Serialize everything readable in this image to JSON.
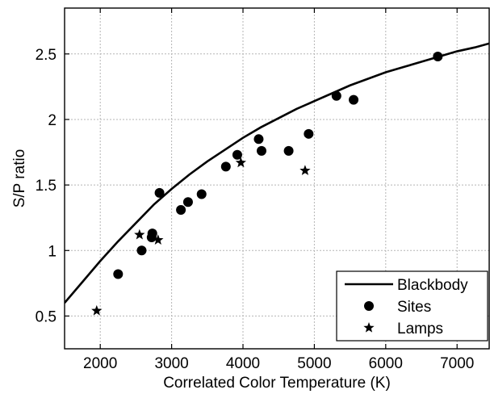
{
  "chart_data": {
    "type": "scatter",
    "xlabel": "Correlated Color Temperature (K)",
    "ylabel": "S/P ratio",
    "xlim": [
      1500,
      7450
    ],
    "ylim": [
      0.25,
      2.85
    ],
    "xticks": [
      2000,
      3000,
      4000,
      5000,
      6000,
      7000
    ],
    "yticks": [
      0.5,
      1,
      1.5,
      2,
      2.5
    ],
    "ytick_labels": [
      "0.5",
      "1",
      "1.5",
      "2",
      "2.5"
    ],
    "grid": true,
    "legend_position": "bottom-right",
    "series": [
      {
        "name": "Blackbody",
        "kind": "line",
        "color": "#000000",
        "x": [
          1500,
          1750,
          2000,
          2250,
          2500,
          2750,
          3000,
          3250,
          3500,
          3750,
          4000,
          4250,
          4500,
          4750,
          5000,
          5250,
          5500,
          5750,
          6000,
          6250,
          6500,
          6750,
          7000,
          7250,
          7450
        ],
        "y": [
          0.6,
          0.76,
          0.92,
          1.07,
          1.21,
          1.35,
          1.47,
          1.58,
          1.68,
          1.77,
          1.86,
          1.94,
          2.01,
          2.08,
          2.14,
          2.2,
          2.26,
          2.31,
          2.36,
          2.4,
          2.44,
          2.48,
          2.52,
          2.55,
          2.58
        ]
      },
      {
        "name": "Sites",
        "kind": "marker-circle",
        "color": "#000000",
        "x": [
          2250,
          2580,
          2720,
          2730,
          2830,
          3130,
          3230,
          3420,
          3760,
          3920,
          4220,
          4260,
          4640,
          4920,
          5310,
          5550,
          6730
        ],
        "y": [
          0.82,
          1.0,
          1.1,
          1.13,
          1.44,
          1.31,
          1.37,
          1.43,
          1.64,
          1.73,
          1.85,
          1.76,
          1.76,
          1.89,
          2.18,
          2.15,
          2.48
        ]
      },
      {
        "name": "Lamps",
        "kind": "marker-star",
        "color": "#000000",
        "x": [
          1950,
          2550,
          2810,
          3970,
          4870
        ],
        "y": [
          0.54,
          1.12,
          1.08,
          1.67,
          1.61
        ]
      }
    ]
  }
}
